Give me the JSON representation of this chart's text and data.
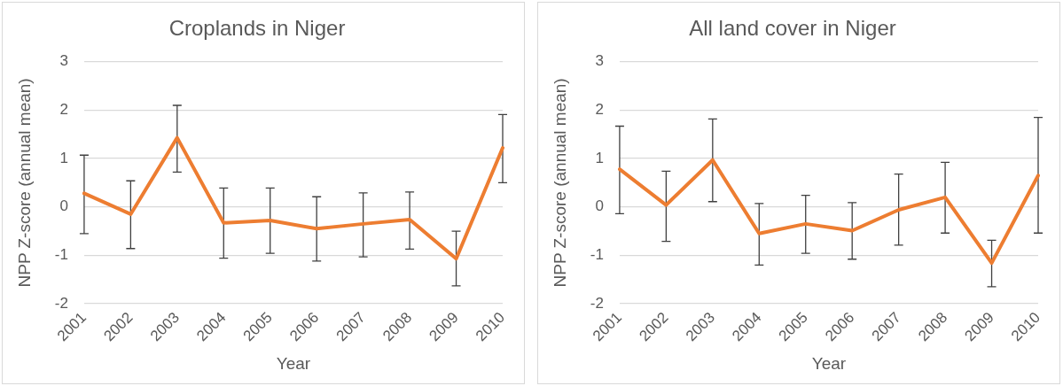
{
  "chart_data": [
    {
      "type": "line",
      "title": "Croplands in Niger",
      "xlabel": "Year",
      "ylabel": "NPP Z-score (annual mean)",
      "categories": [
        "2001",
        "2002",
        "2003",
        "2004",
        "2005",
        "2006",
        "2007",
        "2008",
        "2009",
        "2010"
      ],
      "series": [
        {
          "color": "#ed7d31",
          "values": [
            0.28,
            -0.15,
            1.43,
            -0.33,
            -0.28,
            -0.45,
            -0.35,
            -0.26,
            -1.07,
            1.22
          ],
          "errors": [
            [
              -0.55,
              1.07
            ],
            [
              -0.86,
              0.54
            ],
            [
              0.72,
              2.1
            ],
            [
              -1.06,
              0.39
            ],
            [
              -0.96,
              0.39
            ],
            [
              -1.12,
              0.21
            ],
            [
              -1.03,
              0.29
            ],
            [
              -0.87,
              0.31
            ],
            [
              -1.63,
              -0.5
            ],
            [
              0.5,
              1.91
            ]
          ]
        }
      ],
      "ylim": [
        -2,
        3
      ],
      "yticks": [
        -2,
        -1,
        0,
        1,
        2,
        3
      ],
      "grid": "y",
      "legend": false,
      "marker": "none",
      "line_style": "solid"
    },
    {
      "type": "line",
      "title": "All land cover in Niger",
      "xlabel": "Year",
      "ylabel": "NPP Z-score (annual mean)",
      "categories": [
        "2001",
        "2002",
        "2003",
        "2004",
        "2005",
        "2006",
        "2007",
        "2008",
        "2009",
        "2010"
      ],
      "series": [
        {
          "color": "#ed7d31",
          "values": [
            0.78,
            0.04,
            0.97,
            -0.55,
            -0.35,
            -0.49,
            -0.06,
            0.2,
            -1.16,
            0.65
          ],
          "errors": [
            [
              -0.14,
              1.67
            ],
            [
              -0.71,
              0.74
            ],
            [
              0.11,
              1.82
            ],
            [
              -1.2,
              0.07
            ],
            [
              -0.96,
              0.24
            ],
            [
              -1.08,
              0.09
            ],
            [
              -0.79,
              0.68
            ],
            [
              -0.54,
              0.92
            ],
            [
              -1.65,
              -0.69
            ],
            [
              -0.54,
              1.85
            ]
          ]
        }
      ],
      "ylim": [
        -2,
        3
      ],
      "yticks": [
        -2,
        -1,
        0,
        1,
        2,
        3
      ],
      "grid": "y",
      "legend": false,
      "marker": "none",
      "line_style": "solid"
    }
  ]
}
